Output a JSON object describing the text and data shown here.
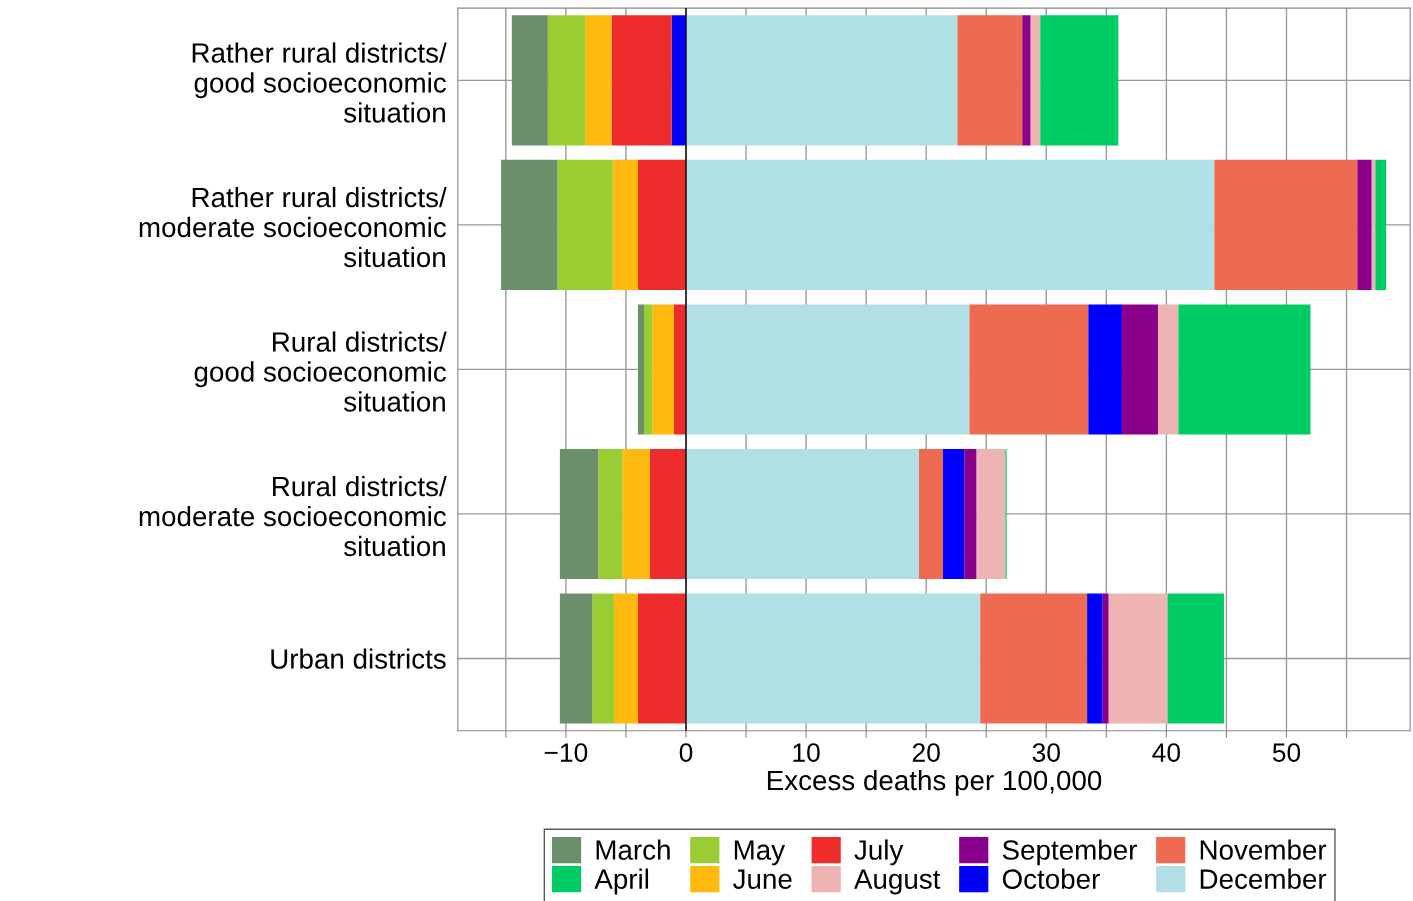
{
  "chart_data": {
    "type": "bar",
    "orientation": "horizontal",
    "stacked": true,
    "xlabel": "Excess deaths per 100,000",
    "categories": [
      "Rather rural districts/\ngood socioeconomic\nsituation",
      "Rather rural districts/\nmoderate socioeconomic\nsituation",
      "Rural districts/\ngood socioeconomic\nsituation",
      "Rural districts/\nmoderate socioeconomic\nsituation",
      "Urban districts"
    ],
    "series": [
      {
        "name": "December",
        "color": "#b0e0e6",
        "values": [
          22.6,
          44.0,
          23.6,
          19.4,
          24.5
        ]
      },
      {
        "name": "November",
        "color": "#ee6a50",
        "values": [
          5.4,
          11.9,
          9.9,
          2.0,
          8.9
        ]
      },
      {
        "name": "October",
        "color": "#0000ff",
        "values": [
          -1.2,
          0,
          2.8,
          1.8,
          1.3
        ]
      },
      {
        "name": "September",
        "color": "#8b008b",
        "values": [
          0.7,
          1.2,
          3.0,
          1.0,
          0.5
        ]
      },
      {
        "name": "August",
        "color": "#eeb4b4",
        "values": [
          0.8,
          0.3,
          1.7,
          2.4,
          4.9
        ]
      },
      {
        "name": "July",
        "color": "#ee2c2c",
        "values": [
          -5.0,
          -4.0,
          -1.0,
          -3.0,
          -4.0
        ]
      },
      {
        "name": "June",
        "color": "#ffb90f",
        "values": [
          -2.2,
          -2.1,
          -1.8,
          -2.3,
          -2.0
        ]
      },
      {
        "name": "May",
        "color": "#9acd32",
        "values": [
          -3.1,
          -4.6,
          -0.7,
          -2.0,
          -1.8
        ]
      },
      {
        "name": "April",
        "color": "#00cc66",
        "values": [
          6.5,
          0.9,
          11.0,
          0.1,
          4.7
        ]
      },
      {
        "name": "March",
        "color": "#6b8e6b",
        "values": [
          -3.0,
          -4.7,
          -0.5,
          -3.2,
          -2.7
        ]
      }
    ],
    "xlim": [
      -19,
      60.3
    ],
    "xticks": [
      {
        "value": -15,
        "label": null
      },
      -10,
      {
        "value": -5,
        "label": null
      },
      0,
      {
        "value": 5,
        "label": null
      },
      10,
      {
        "value": 15,
        "label": null
      },
      20,
      {
        "value": 25,
        "label": null
      },
      30,
      {
        "value": 35,
        "label": null
      },
      40,
      {
        "value": 45,
        "label": null
      },
      50,
      {
        "value": 55,
        "label": null
      }
    ],
    "ref_lines": [
      {
        "axis": "x",
        "value": 0,
        "color": "#000000"
      }
    ],
    "grid": true,
    "legend": "bottom"
  }
}
